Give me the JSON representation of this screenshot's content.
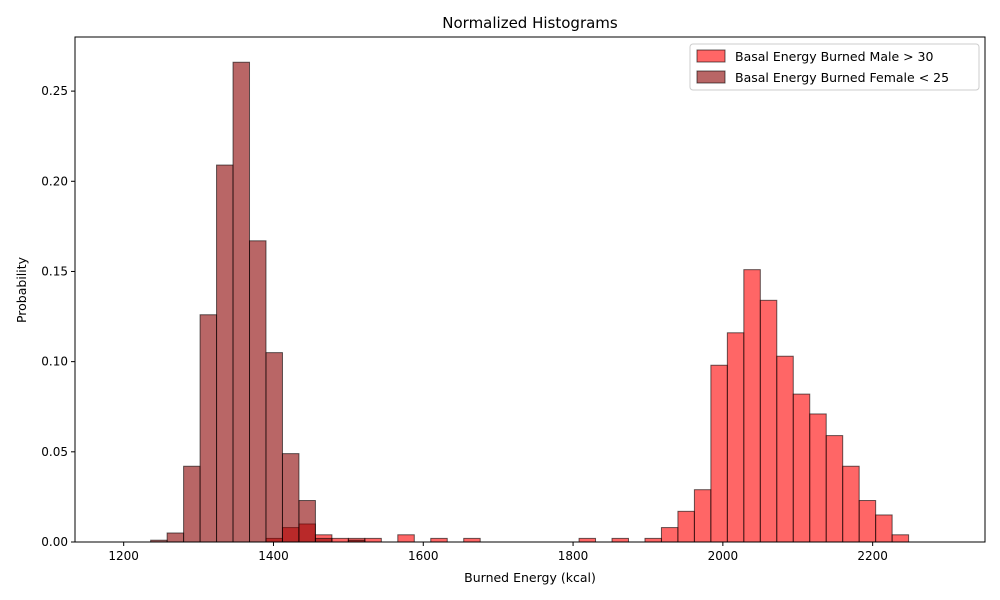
{
  "chart_data": {
    "type": "bar",
    "title": "Normalized Histograms",
    "xlabel": "Burned Energy (kcal)",
    "ylabel": "Probability",
    "xlim": [
      1135,
      2350
    ],
    "ylim": [
      0,
      0.28
    ],
    "xticks": [
      1200,
      1400,
      1600,
      1800,
      2000,
      2200
    ],
    "xtick_labels": [
      "1200",
      "1400",
      "1600",
      "1800",
      "2000",
      "2200"
    ],
    "yticks": [
      0,
      0.05,
      0.1,
      0.15,
      0.2,
      0.25
    ],
    "ytick_labels": [
      "0.00",
      "0.05",
      "0.10",
      "0.15",
      "0.20",
      "0.25"
    ],
    "grid": false,
    "legend_position": "top-right",
    "bin_width": 22,
    "series": [
      {
        "name": "Basal Energy Burned Male > 30",
        "color": "#ff0000",
        "alpha": 0.6,
        "bins": [
          {
            "start": 1192,
            "value": 0.0
          },
          {
            "start": 1214,
            "value": 0.0
          },
          {
            "start": 1390,
            "value": 0.002
          },
          {
            "start": 1412,
            "value": 0.008
          },
          {
            "start": 1434,
            "value": 0.01
          },
          {
            "start": 1456,
            "value": 0.004
          },
          {
            "start": 1478,
            "value": 0.002
          },
          {
            "start": 1500,
            "value": 0.002
          },
          {
            "start": 1522,
            "value": 0.002
          },
          {
            "start": 1566,
            "value": 0.004
          },
          {
            "start": 1610,
            "value": 0.002
          },
          {
            "start": 1654,
            "value": 0.002
          },
          {
            "start": 1698,
            "value": 0.0
          },
          {
            "start": 1720,
            "value": 0.0
          },
          {
            "start": 1742,
            "value": 0.0
          },
          {
            "start": 1764,
            "value": 0.0
          },
          {
            "start": 1808,
            "value": 0.002
          },
          {
            "start": 1852,
            "value": 0.002
          },
          {
            "start": 1896,
            "value": 0.002
          },
          {
            "start": 1918,
            "value": 0.008
          },
          {
            "start": 1940,
            "value": 0.017
          },
          {
            "start": 1962,
            "value": 0.029
          },
          {
            "start": 1984,
            "value": 0.098
          },
          {
            "start": 2006,
            "value": 0.116
          },
          {
            "start": 2028,
            "value": 0.151
          },
          {
            "start": 2050,
            "value": 0.134
          },
          {
            "start": 2072,
            "value": 0.103
          },
          {
            "start": 2094,
            "value": 0.082
          },
          {
            "start": 2116,
            "value": 0.071
          },
          {
            "start": 2138,
            "value": 0.059
          },
          {
            "start": 2160,
            "value": 0.042
          },
          {
            "start": 2182,
            "value": 0.023
          },
          {
            "start": 2204,
            "value": 0.015
          },
          {
            "start": 2226,
            "value": 0.004
          },
          {
            "start": 2248,
            "value": 0.0
          },
          {
            "start": 2270,
            "value": 0.0
          }
        ]
      },
      {
        "name": "Basal Energy Burned Female < 25",
        "color": "#8b0000",
        "alpha": 0.6,
        "bins": [
          {
            "start": 1236,
            "value": 0.001
          },
          {
            "start": 1258,
            "value": 0.005
          },
          {
            "start": 1280,
            "value": 0.042
          },
          {
            "start": 1302,
            "value": 0.126
          },
          {
            "start": 1324,
            "value": 0.209
          },
          {
            "start": 1346,
            "value": 0.266
          },
          {
            "start": 1368,
            "value": 0.167
          },
          {
            "start": 1390,
            "value": 0.105
          },
          {
            "start": 1412,
            "value": 0.049
          },
          {
            "start": 1434,
            "value": 0.023
          },
          {
            "start": 1456,
            "value": 0.002
          },
          {
            "start": 1500,
            "value": 0.001
          }
        ]
      }
    ]
  }
}
